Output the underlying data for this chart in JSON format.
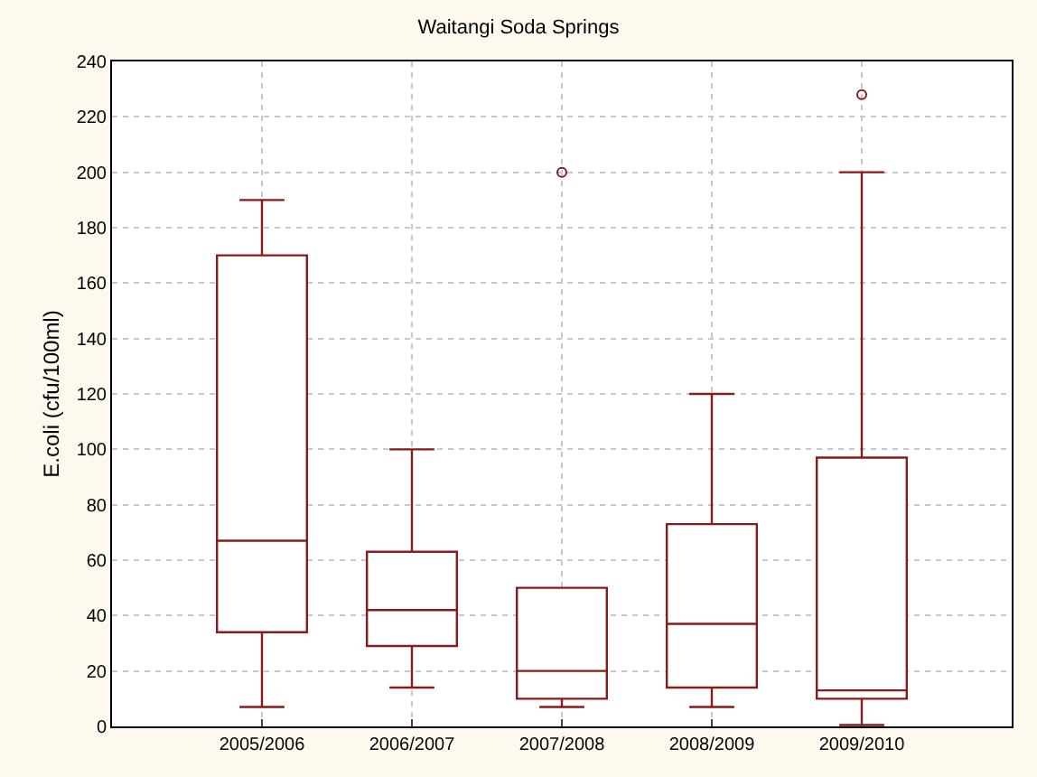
{
  "chart_data": {
    "type": "box",
    "title": "Waitangi Soda Springs",
    "ylabel": "E.coli (cfu/100ml)",
    "categories": [
      "2005/2006",
      "2006/2007",
      "2007/2008",
      "2008/2009",
      "2009/2010"
    ],
    "color": "#8b1a1a",
    "boxes": [
      {
        "low": 7,
        "q1": 34,
        "median": 67,
        "q3": 170,
        "high": 190
      },
      {
        "low": 14,
        "q1": 29,
        "median": 42,
        "q3": 63,
        "high": 100
      },
      {
        "low": 7,
        "q1": 10,
        "median": 20,
        "q3": 50,
        "high": 50,
        "outliers": [
          200
        ]
      },
      {
        "low": 7,
        "q1": 14,
        "median": 37,
        "q3": 73,
        "high": 120
      },
      {
        "low": 0.5,
        "q1": 10,
        "median": 13,
        "q3": 97,
        "high": 200,
        "outliers": [
          228
        ]
      }
    ],
    "ylim": [
      0,
      240
    ],
    "yticks": [
      0,
      20,
      40,
      60,
      80,
      100,
      120,
      140,
      160,
      180,
      200,
      220,
      240
    ],
    "grid": true
  }
}
